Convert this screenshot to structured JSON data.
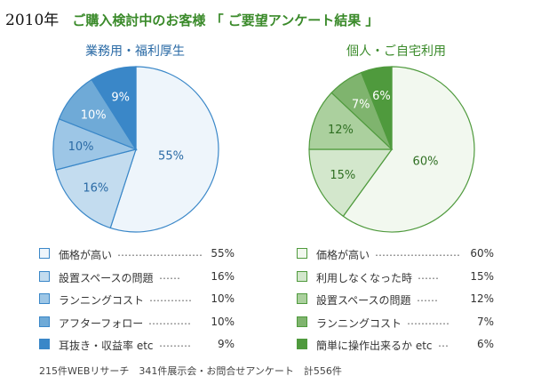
{
  "header": {
    "year": "2010年",
    "title": "ご購入検討中のお客様 「 ご要望アンケート結果 」"
  },
  "chart_data": [
    {
      "type": "pie",
      "title": "業務用・福利厚生",
      "categories": [
        "価格が高い",
        "設置スペースの問題",
        "ランニングコスト",
        "アフターフォロー",
        "耳抜き・収益率 etc"
      ],
      "values": [
        55,
        16,
        10,
        10,
        9
      ],
      "labels": [
        "55%",
        "16%",
        "10%",
        "10%",
        "9%"
      ],
      "colors": [
        "#eef5fb",
        "#c3dcef",
        "#9dc6e6",
        "#6faad7",
        "#3a87c8"
      ],
      "stroke": "#3a87c8",
      "label_colors": [
        "#2a6aa5",
        "#2a6aa5",
        "#2a6aa5",
        "#ffffff",
        "#ffffff"
      ],
      "legend_dots": [
        "……………………",
        "……",
        "…………",
        "…………",
        "………"
      ]
    },
    {
      "type": "pie",
      "title": "個人・ご自宅利用",
      "categories": [
        "価格が高い",
        "利用しなくなった時",
        "設置スペースの問題",
        "ランニングコスト",
        "簡単に操作出来るか etc"
      ],
      "values": [
        60,
        15,
        12,
        7,
        6
      ],
      "labels": [
        "60%",
        "15%",
        "12%",
        "7%",
        "6%"
      ],
      "colors": [
        "#f2f8ef",
        "#d3e7cc",
        "#abd09e",
        "#7fb46e",
        "#4f9a3d"
      ],
      "stroke": "#4f9a3d",
      "label_colors": [
        "#2f6f22",
        "#2f6f22",
        "#2f6f22",
        "#ffffff",
        "#ffffff"
      ],
      "legend_dots": [
        "……………………",
        "……",
        "……",
        "…………",
        "…"
      ]
    }
  ],
  "footer": "215件WEBリサーチ　341件展示会・お問合せアンケート　計556件"
}
